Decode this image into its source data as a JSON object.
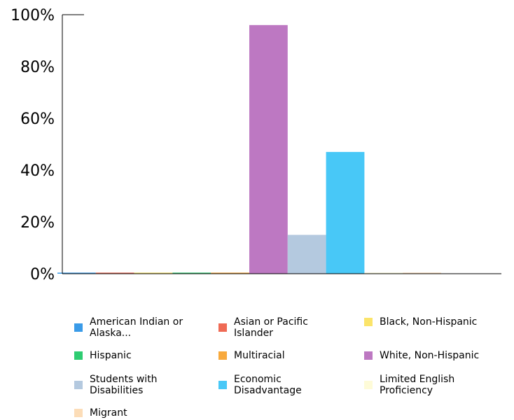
{
  "chart_data": {
    "type": "bar",
    "ylim": [
      0,
      100
    ],
    "y_ticks": [
      "0%",
      "20%",
      "40%",
      "60%",
      "80%",
      "100%"
    ],
    "grid": false,
    "legend_position": "bottom",
    "series": [
      {
        "name": "American Indian or Alaska...",
        "value": 0,
        "color": "#3A9BE8"
      },
      {
        "name": "Asian or Pacific Islander",
        "value": 0,
        "color": "#EF6A55"
      },
      {
        "name": "Black, Non-Hispanic",
        "value": 0,
        "color": "#FBE46A"
      },
      {
        "name": "Hispanic",
        "value": 0,
        "color": "#2ECC71"
      },
      {
        "name": "Multiracial",
        "value": 0,
        "color": "#F8A93C"
      },
      {
        "name": "White, Non-Hispanic",
        "value": 96,
        "color": "#BD78C2"
      },
      {
        "name": "Students with Disabilities",
        "value": 15,
        "color": "#B4C9DF"
      },
      {
        "name": "Economic Disadvantage",
        "value": 47,
        "color": "#48C8F7"
      },
      {
        "name": "Limited English Proficiency",
        "value": 0,
        "color": "#FEFBD8"
      },
      {
        "name": "Migrant",
        "value": 0,
        "color": "#FCDDB8"
      }
    ]
  }
}
